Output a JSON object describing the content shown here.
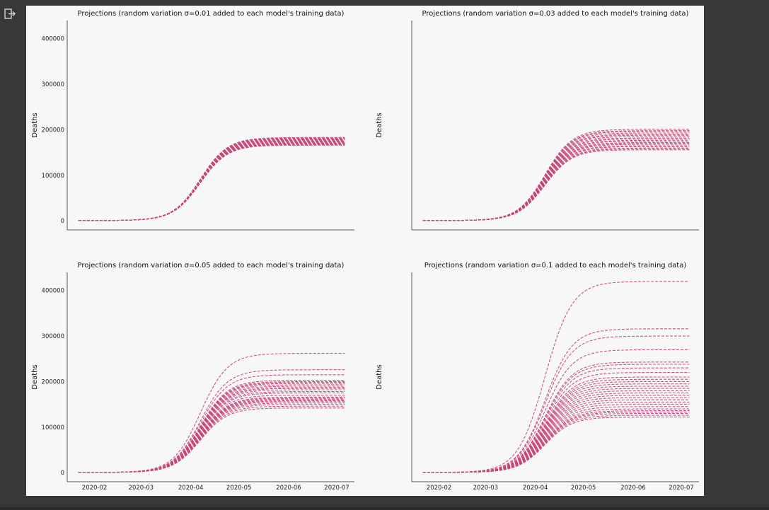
{
  "output": {
    "icon": "output-redirect-icon"
  },
  "chart_data": [
    {
      "type": "line",
      "title": "Projections (random variation σ=0.01 added to each model's training data)",
      "xlabel": "",
      "ylabel": "Deaths",
      "x_ticks": [
        "2020-02",
        "2020-03",
        "2020-04",
        "2020-05",
        "2020-06",
        "2020-07"
      ],
      "x_tick_labels_visible": false,
      "y_ticks": [
        0,
        100000,
        200000,
        300000,
        400000
      ],
      "y_tick_labels_visible": true,
      "ylim": [
        -20000,
        440000
      ],
      "xlim": [
        "2020-01-15",
        "2020-07-12"
      ],
      "series_style": {
        "color": "#c8457a",
        "dash": "dashed"
      },
      "curve_model": {
        "start": "2020-01-22",
        "end": "2020-07-06",
        "midpoint": "2020-04-07",
        "growth_scale_days": 8.5,
        "initial": 500
      },
      "final_values": [
        166000,
        167000,
        168000,
        169000,
        170000,
        171000,
        172000,
        173000,
        174000,
        175000,
        176000,
        177000,
        178000,
        179000,
        180000,
        181000,
        182000,
        183000
      ]
    },
    {
      "type": "line",
      "title": "Projections (random variation σ=0.03 added to each model's training data)",
      "xlabel": "",
      "ylabel": "Deaths",
      "x_ticks": [
        "2020-02",
        "2020-03",
        "2020-04",
        "2020-05",
        "2020-06",
        "2020-07"
      ],
      "x_tick_labels_visible": false,
      "y_ticks": [
        0,
        100000,
        200000,
        300000,
        400000
      ],
      "y_tick_labels_visible": false,
      "ylim": [
        -20000,
        440000
      ],
      "xlim": [
        "2020-01-15",
        "2020-07-12"
      ],
      "series_style": {
        "color": "#c8457a",
        "dash": "dashed"
      },
      "curve_model": {
        "start": "2020-01-22",
        "end": "2020-07-06",
        "midpoint": "2020-04-07",
        "growth_scale_days": 8.5,
        "initial": 500
      },
      "final_values": [
        156000,
        158000,
        160000,
        163000,
        165000,
        168000,
        170000,
        172000,
        175000,
        177000,
        180000,
        182000,
        185000,
        188000,
        190000,
        193000,
        196000,
        198000,
        201000
      ]
    },
    {
      "type": "line",
      "title": "Projections (random variation σ=0.05 added to each model's training data)",
      "xlabel": "",
      "ylabel": "Deaths",
      "x_ticks": [
        "2020-02",
        "2020-03",
        "2020-04",
        "2020-05",
        "2020-06",
        "2020-07"
      ],
      "x_tick_labels_visible": true,
      "y_ticks": [
        0,
        100000,
        200000,
        300000,
        400000
      ],
      "y_tick_labels_visible": true,
      "ylim": [
        -20000,
        440000
      ],
      "xlim": [
        "2020-01-15",
        "2020-07-12"
      ],
      "series_style": {
        "color": "#c8457a",
        "dash": "dashed"
      },
      "curve_model": {
        "start": "2020-01-22",
        "end": "2020-07-06",
        "midpoint": "2020-04-07",
        "growth_scale_days": 8.5,
        "initial": 500
      },
      "final_values": [
        142000,
        146000,
        150000,
        153000,
        156000,
        158000,
        160000,
        162000,
        164000,
        166000,
        170000,
        175000,
        178000,
        182000,
        185000,
        187000,
        190000,
        193000,
        196000,
        198000,
        200000,
        203000,
        215000,
        226000,
        262000
      ]
    },
    {
      "type": "line",
      "title": "Projections (random variation σ=0.1 added to each model's training data)",
      "xlabel": "",
      "ylabel": "Deaths",
      "x_ticks": [
        "2020-02",
        "2020-03",
        "2020-04",
        "2020-05",
        "2020-06",
        "2020-07"
      ],
      "x_tick_labels_visible": true,
      "y_ticks": [
        0,
        100000,
        200000,
        300000,
        400000
      ],
      "y_tick_labels_visible": false,
      "ylim": [
        -20000,
        440000
      ],
      "xlim": [
        "2020-01-15",
        "2020-07-12"
      ],
      "series_style": {
        "color": "#c8457a",
        "dash": "dashed"
      },
      "curve_model": {
        "start": "2020-01-22",
        "end": "2020-07-06",
        "midpoint": "2020-04-07",
        "growth_scale_days": 8.5,
        "initial": 500
      },
      "final_values": [
        122000,
        126000,
        130000,
        133000,
        136000,
        140000,
        145000,
        150000,
        155000,
        160000,
        165000,
        170000,
        175000,
        180000,
        185000,
        190000,
        195000,
        200000,
        205000,
        210000,
        220000,
        230000,
        238000,
        243000,
        270000,
        300000,
        316000,
        420000
      ]
    }
  ]
}
